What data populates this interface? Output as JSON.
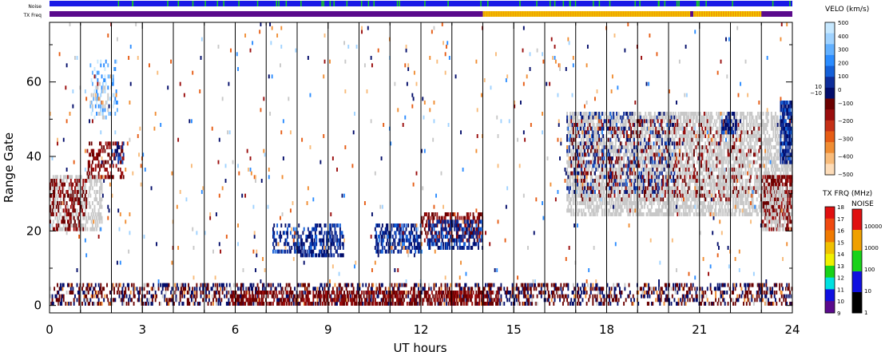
{
  "chart_data": {
    "type": "heatmap",
    "xlabel": "UT hours",
    "ylabel": "Range Gate",
    "xlim": [
      0,
      24
    ],
    "ylim": [
      -2,
      76
    ],
    "x_ticks": [
      0,
      3,
      6,
      9,
      12,
      15,
      18,
      21,
      24
    ],
    "y_ticks": [
      0,
      20,
      40,
      60
    ],
    "hour_lines": [
      1,
      2,
      3,
      4,
      5,
      6,
      7,
      8,
      9,
      10,
      11,
      12,
      13,
      14,
      15,
      16,
      17,
      18,
      19,
      20,
      21,
      22,
      23
    ],
    "top_bars": {
      "noise_label": "Noise",
      "txfreq_label": "TX Freq",
      "noise_color": "#1a1ae6",
      "noise_spike_color": "#19d219",
      "txfreq_color_low": "#5a0a8c",
      "txfreq_color_high": "#f0a000",
      "txfreq_high_segments": [
        [
          14.0,
          20.7
        ],
        [
          20.8,
          23.0
        ]
      ]
    },
    "velocity_colorbar": {
      "title": "VELO (km/s)",
      "labels": [
        "500",
        "400",
        "300",
        "200",
        "100",
        "0",
        "10",
        "−10",
        "−100",
        "−200",
        "−300",
        "−400",
        "−500"
      ],
      "colors": [
        "#c6e8ff",
        "#9fd2ff",
        "#62b0ff",
        "#2b8cff",
        "#1560d8",
        "#0e2d9a",
        "#020c6a",
        "#6b0000",
        "#9a0d0d",
        "#c53016",
        "#e65c14",
        "#f08d33",
        "#f8bb7a",
        "#fddcb8"
      ]
    },
    "txfreq_colorbar": {
      "title": "TX FRQ (MHz)",
      "labels": [
        "18",
        "17",
        "16",
        "15",
        "14",
        "13",
        "12",
        "11",
        "10",
        "9"
      ],
      "colors": [
        "#e01010",
        "#f04a10",
        "#f07a00",
        "#f0c000",
        "#f0f000",
        "#19d219",
        "#00e0e0",
        "#1010e0",
        "#5a0a8c"
      ]
    },
    "noise_colorbar": {
      "title": "NOISE",
      "labels": [
        "10000",
        "1000",
        "100",
        "10",
        "1"
      ],
      "colors": [
        "#e01010",
        "#f0a000",
        "#19d219",
        "#1010e0",
        "#000000"
      ]
    },
    "echo_regions": [
      {
        "class": "ground",
        "x": [
          0.0,
          1.7
        ],
        "y": [
          20,
          35
        ],
        "density": 0.45
      },
      {
        "class": "neg",
        "x": [
          0.0,
          1.2
        ],
        "y": [
          20,
          34
        ],
        "density": 0.3
      },
      {
        "class": "neg",
        "x": [
          1.2,
          2.4
        ],
        "y": [
          34,
          44
        ],
        "density": 0.3
      },
      {
        "class": "pos",
        "x": [
          2.0,
          2.4
        ],
        "y": [
          38,
          44
        ],
        "density": 0.25
      },
      {
        "class": "pos_light",
        "x": [
          1.3,
          2.2
        ],
        "y": [
          50,
          66
        ],
        "density": 0.18
      },
      {
        "class": "ground",
        "x": [
          1.3,
          2.0
        ],
        "y": [
          50,
          60
        ],
        "density": 0.12
      },
      {
        "class": "near_mix",
        "x": [
          0.0,
          24.0
        ],
        "y": [
          0,
          6
        ],
        "density": 0.35
      },
      {
        "class": "neg",
        "x": [
          5.8,
          14.5
        ],
        "y": [
          0,
          4
        ],
        "density": 0.45
      },
      {
        "class": "pos",
        "x": [
          7.2,
          8.0
        ],
        "y": [
          14,
          22
        ],
        "density": 0.35
      },
      {
        "class": "pos",
        "x": [
          8.0,
          9.5
        ],
        "y": [
          13,
          22
        ],
        "density": 0.45
      },
      {
        "class": "pos",
        "x": [
          10.5,
          12.0
        ],
        "y": [
          14,
          22
        ],
        "density": 0.5
      },
      {
        "class": "neg",
        "x": [
          12.0,
          14.0
        ],
        "y": [
          17,
          25
        ],
        "density": 0.4
      },
      {
        "class": "pos",
        "x": [
          12.2,
          14.0
        ],
        "y": [
          15,
          23
        ],
        "density": 0.45
      },
      {
        "class": "ground",
        "x": [
          16.7,
          24.0
        ],
        "y": [
          24,
          52
        ],
        "density": 0.55
      },
      {
        "class": "pos",
        "x": [
          16.7,
          20.2
        ],
        "y": [
          30,
          52
        ],
        "density": 0.15
      },
      {
        "class": "neg",
        "x": [
          16.8,
          23.0
        ],
        "y": [
          28,
          50
        ],
        "density": 0.1
      },
      {
        "class": "pos",
        "x": [
          21.7,
          22.2
        ],
        "y": [
          46,
          52
        ],
        "density": 0.5
      },
      {
        "class": "pos",
        "x": [
          23.6,
          24.0
        ],
        "y": [
          38,
          55
        ],
        "density": 0.75
      },
      {
        "class": "neg",
        "x": [
          23.0,
          24.0
        ],
        "y": [
          20,
          35
        ],
        "density": 0.45
      },
      {
        "class": "ground",
        "x": [
          23.0,
          23.8
        ],
        "y": [
          20,
          32
        ],
        "density": 0.3
      },
      {
        "class": "scatter",
        "x": [
          0.0,
          24.0
        ],
        "y": [
          6,
          76
        ],
        "density": 0.012
      }
    ]
  }
}
